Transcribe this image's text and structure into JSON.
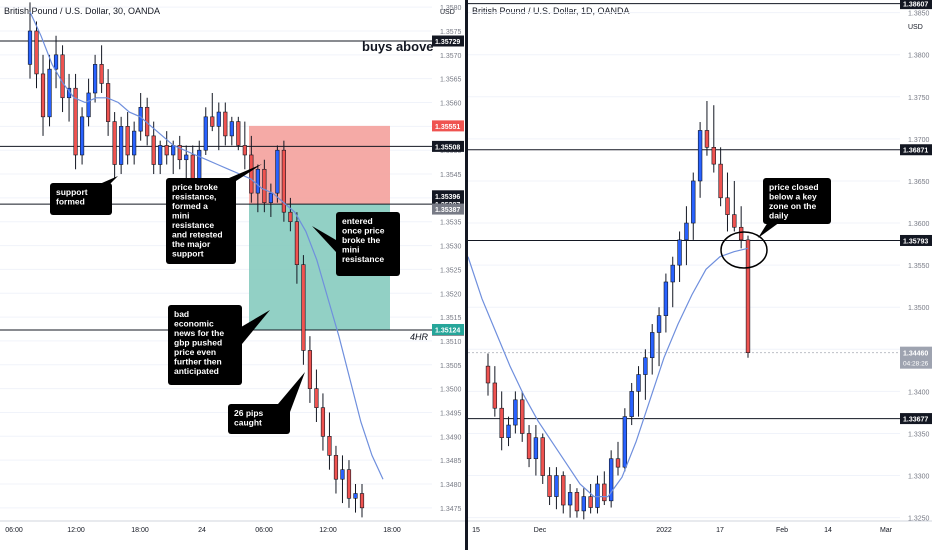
{
  "chart_data": [
    {
      "type": "candlestick",
      "title": "British Pound / U.S. Dollar, 30, OANDA",
      "price_unit": "USD",
      "y_ticks": [
        1.358,
        1.3575,
        1.357,
        1.3565,
        1.356,
        1.3555,
        1.355,
        1.3545,
        1.354,
        1.3535,
        1.353,
        1.3525,
        1.352,
        1.3515,
        1.351,
        1.3505,
        1.35,
        1.3495,
        1.349,
        1.3485,
        1.348,
        1.3475
      ],
      "ylim": [
        1.34725,
        1.35815
      ],
      "x_ticks": [
        "06:00",
        "12:00",
        "18:00",
        "24",
        "06:00",
        "12:00",
        "18:00"
      ],
      "candles": [
        [
          1.3568,
          1.3581,
          1.3565,
          1.3575
        ],
        [
          1.3575,
          1.3577,
          1.3563,
          1.3566
        ],
        [
          1.3566,
          1.357,
          1.3553,
          1.3557
        ],
        [
          1.3557,
          1.357,
          1.3555,
          1.3567
        ],
        [
          1.3567,
          1.3574,
          1.3563,
          1.357
        ],
        [
          1.357,
          1.3572,
          1.3558,
          1.3561
        ],
        [
          1.3561,
          1.3566,
          1.3556,
          1.3563
        ],
        [
          1.3563,
          1.3566,
          1.3546,
          1.3549
        ],
        [
          1.3549,
          1.3559,
          1.3547,
          1.3557
        ],
        [
          1.3557,
          1.3565,
          1.3555,
          1.3562
        ],
        [
          1.3562,
          1.357,
          1.356,
          1.3568
        ],
        [
          1.3568,
          1.3572,
          1.3562,
          1.3564
        ],
        [
          1.3564,
          1.3567,
          1.3553,
          1.3556
        ],
        [
          1.3556,
          1.3558,
          1.3544,
          1.3547
        ],
        [
          1.3547,
          1.3557,
          1.3545,
          1.3555
        ],
        [
          1.3555,
          1.3558,
          1.3547,
          1.3549
        ],
        [
          1.3549,
          1.3556,
          1.3547,
          1.3554
        ],
        [
          1.3554,
          1.3562,
          1.3552,
          1.3559
        ],
        [
          1.3559,
          1.3561,
          1.3551,
          1.3553
        ],
        [
          1.3553,
          1.3556,
          1.3545,
          1.3547
        ],
        [
          1.3547,
          1.3552,
          1.3545,
          1.3551
        ],
        [
          1.3551,
          1.3554,
          1.3547,
          1.3549
        ],
        [
          1.3549,
          1.3552,
          1.3545,
          1.3551
        ],
        [
          1.3551,
          1.3553,
          1.3546,
          1.3548
        ],
        [
          1.3548,
          1.3551,
          1.3544,
          1.3549
        ],
        [
          1.3549,
          1.3551,
          1.3542,
          1.3544
        ],
        [
          1.3544,
          1.3552,
          1.3542,
          1.355
        ],
        [
          1.355,
          1.3559,
          1.3549,
          1.3557
        ],
        [
          1.3557,
          1.3562,
          1.3554,
          1.3555
        ],
        [
          1.3555,
          1.356,
          1.355,
          1.3558
        ],
        [
          1.3558,
          1.356,
          1.3551,
          1.3553
        ],
        [
          1.3553,
          1.3557,
          1.3551,
          1.3556
        ],
        [
          1.3556,
          1.3557,
          1.355,
          1.3551
        ],
        [
          1.3551,
          1.3556,
          1.3546,
          1.3549
        ],
        [
          1.3549,
          1.3553,
          1.3539,
          1.3541
        ],
        [
          1.3541,
          1.3547,
          1.3537,
          1.3546
        ],
        [
          1.3546,
          1.3548,
          1.3537,
          1.3539
        ],
        [
          1.3539,
          1.3543,
          1.3536,
          1.3541
        ],
        [
          1.3541,
          1.3551,
          1.3539,
          1.355
        ],
        [
          1.355,
          1.3552,
          1.3535,
          1.3537
        ],
        [
          1.3537,
          1.354,
          1.3533,
          1.3535
        ],
        [
          1.3535,
          1.3537,
          1.3522,
          1.3526
        ],
        [
          1.3526,
          1.3528,
          1.3505,
          1.3508
        ],
        [
          1.3508,
          1.3511,
          1.3497,
          1.35
        ],
        [
          1.35,
          1.3504,
          1.3493,
          1.3496
        ],
        [
          1.3496,
          1.3499,
          1.3487,
          1.349
        ],
        [
          1.349,
          1.3495,
          1.3483,
          1.3486
        ],
        [
          1.3486,
          1.3488,
          1.3478,
          1.3481
        ],
        [
          1.3481,
          1.3486,
          1.3476,
          1.3483
        ],
        [
          1.3483,
          1.3485,
          1.3475,
          1.3477
        ],
        [
          1.3477,
          1.348,
          1.3474,
          1.3478
        ],
        [
          1.3478,
          1.348,
          1.3473,
          1.3475
        ]
      ],
      "moving_average": [
        1.3579,
        1.3574,
        1.3568,
        1.3564,
        1.3561,
        1.356,
        1.3561,
        1.3561,
        1.356,
        1.3558,
        1.3557,
        1.3555,
        1.3553,
        1.3551,
        1.355,
        1.3549,
        1.3548,
        1.3547,
        1.3546,
        1.3545,
        1.3544,
        1.3542,
        1.3541,
        1.3539,
        1.3537,
        1.3533,
        1.3527,
        1.3519,
        1.3511,
        1.3502,
        1.3493,
        1.3486,
        1.3481
      ],
      "horizontal_lines": [
        {
          "price": 1.35729,
          "label": "1.35729"
        },
        {
          "price": 1.35508,
          "label": "1.35508"
        },
        {
          "price": 1.35387,
          "label": "1.35387"
        },
        {
          "price": 1.35123,
          "label": "1.35123"
        }
      ],
      "price_badges": [
        {
          "price": 1.35551,
          "label": "1.35551",
          "color": "#ef5350"
        },
        {
          "price": 1.35396,
          "label": "1.35396",
          "color": "#131722"
        },
        {
          "price": 1.35387,
          "label": "1.35387",
          "color": "#787b86"
        },
        {
          "price": 1.35124,
          "label": "1.35124",
          "color": "#26a69a"
        }
      ],
      "position": {
        "entry": 1.35387,
        "stop": 1.35551,
        "target": 1.35124,
        "loss_color": "#f4a19c",
        "profit_color": "#86cbbf"
      },
      "labels": {
        "buys_above": "buys above",
        "timeframe": "4HR"
      },
      "annotations": [
        {
          "text": [
            "support",
            "formed"
          ]
        },
        {
          "text": [
            "price broke",
            "resistance,",
            "formed a",
            "mini",
            "resistance",
            "and retested",
            "the major",
            "support"
          ]
        },
        {
          "text": [
            "entered",
            "once price",
            "broke the",
            "mini",
            "resistance"
          ]
        },
        {
          "text": [
            "bad",
            "economic",
            "news for the",
            "gbp pushed",
            "price even",
            "further then",
            "anticipated"
          ]
        },
        {
          "text": [
            "26 pips",
            "caught"
          ]
        }
      ]
    },
    {
      "type": "candlestick",
      "title": "British Pound / U.S. Dollar, 1D, OANDA",
      "price_unit": "USD",
      "top_badge": "1.3860?",
      "y_ticks": [
        1.385,
        1.38,
        1.375,
        1.37,
        1.365,
        1.36,
        1.355,
        1.35,
        1.345,
        1.34,
        1.335,
        1.33,
        1.325
      ],
      "ylim": [
        1.32475,
        1.3865
      ],
      "x_ticks": [
        "15",
        "Dec",
        "2022",
        "17",
        "Feb",
        "14",
        "Mar"
      ],
      "candles": [
        [
          1.343,
          1.3445,
          1.3395,
          1.341
        ],
        [
          1.341,
          1.343,
          1.337,
          1.338
        ],
        [
          1.338,
          1.34,
          1.333,
          1.3345
        ],
        [
          1.3345,
          1.337,
          1.3335,
          1.336
        ],
        [
          1.336,
          1.34,
          1.335,
          1.339
        ],
        [
          1.339,
          1.34,
          1.334,
          1.335
        ],
        [
          1.335,
          1.336,
          1.331,
          1.332
        ],
        [
          1.332,
          1.336,
          1.33,
          1.3345
        ],
        [
          1.3345,
          1.335,
          1.329,
          1.33
        ],
        [
          1.33,
          1.331,
          1.3265,
          1.3275
        ],
        [
          1.3275,
          1.331,
          1.326,
          1.33
        ],
        [
          1.33,
          1.3305,
          1.3255,
          1.3265
        ],
        [
          1.3265,
          1.329,
          1.325,
          1.328
        ],
        [
          1.328,
          1.3285,
          1.325,
          1.3258
        ],
        [
          1.3258,
          1.3285,
          1.3248,
          1.3275
        ],
        [
          1.3275,
          1.329,
          1.3255,
          1.3262
        ],
        [
          1.3262,
          1.33,
          1.3255,
          1.329
        ],
        [
          1.329,
          1.3305,
          1.3265,
          1.327
        ],
        [
          1.327,
          1.333,
          1.3262,
          1.332
        ],
        [
          1.332,
          1.334,
          1.33,
          1.331
        ],
        [
          1.331,
          1.338,
          1.3305,
          1.337
        ],
        [
          1.337,
          1.341,
          1.336,
          1.34
        ],
        [
          1.34,
          1.343,
          1.337,
          1.342
        ],
        [
          1.342,
          1.345,
          1.339,
          1.344
        ],
        [
          1.344,
          1.348,
          1.342,
          1.347
        ],
        [
          1.347,
          1.35,
          1.343,
          1.349
        ],
        [
          1.349,
          1.354,
          1.347,
          1.353
        ],
        [
          1.353,
          1.356,
          1.35,
          1.355
        ],
        [
          1.355,
          1.359,
          1.353,
          1.358
        ],
        [
          1.358,
          1.362,
          1.355,
          1.36
        ],
        [
          1.36,
          1.366,
          1.358,
          1.365
        ],
        [
          1.365,
          1.372,
          1.363,
          1.371
        ],
        [
          1.371,
          1.3745,
          1.368,
          1.369
        ],
        [
          1.369,
          1.374,
          1.366,
          1.367
        ],
        [
          1.367,
          1.369,
          1.362,
          1.363
        ],
        [
          1.363,
          1.366,
          1.359,
          1.361
        ],
        [
          1.361,
          1.365,
          1.359,
          1.3595
        ],
        [
          1.3595,
          1.362,
          1.357,
          1.358
        ],
        [
          1.358,
          1.3585,
          1.344,
          1.3446
        ]
      ],
      "moving_average": [
        1.356,
        1.351,
        1.347,
        1.343,
        1.3395,
        1.3365,
        1.334,
        1.3315,
        1.329,
        1.3275,
        1.3275,
        1.3298,
        1.334,
        1.339,
        1.344,
        1.348,
        1.3515,
        1.3545,
        1.356,
        1.3566,
        1.357
      ],
      "horizontal_lines": [
        {
          "price": 1.38607,
          "label": "1.38607"
        },
        {
          "price": 1.36871,
          "label": "1.36871"
        },
        {
          "price": 1.35793,
          "label": "1.35793"
        },
        {
          "price": 1.33677,
          "label": "1.33677"
        }
      ],
      "current_price": {
        "price": 1.3446,
        "label": "1.34460",
        "countdown": "04:28:26"
      },
      "annotations": [
        {
          "text": [
            "price closed",
            "below a key",
            "zone on the",
            "daily"
          ]
        }
      ]
    }
  ]
}
